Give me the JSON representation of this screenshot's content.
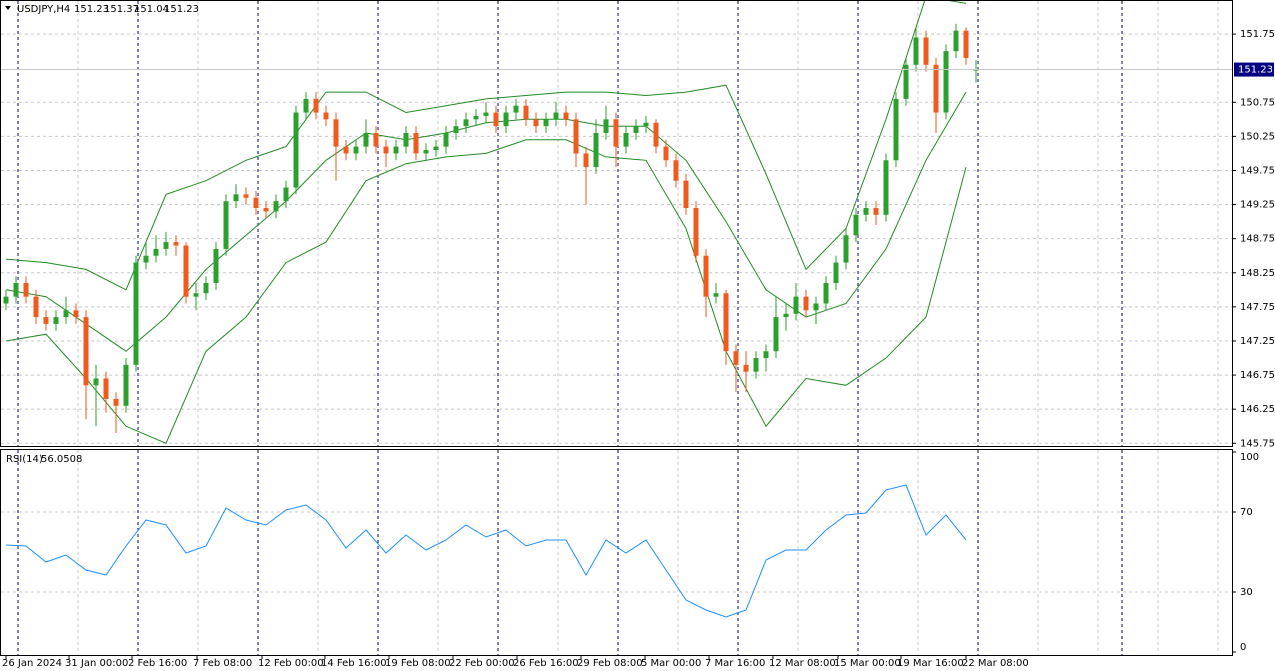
{
  "chart_data": [
    {
      "type": "candlestick",
      "title": "USDJPY,H4",
      "header_values": [
        151.23,
        151.37,
        151.04,
        151.23
      ],
      "up_color": "#2ca02c",
      "down_color": "#f05a1e",
      "grid": true,
      "ylim": [
        145.71,
        152.25
      ],
      "yticks": [
        145.75,
        146.25,
        146.75,
        147.25,
        147.75,
        148.25,
        148.75,
        149.25,
        149.75,
        150.25,
        150.75,
        151.75
      ],
      "last_price": 151.23,
      "xlim": [
        -0.6,
        122.6
      ],
      "xticks": [
        {
          "value": 0,
          "label": "26 Jan 2024"
        },
        {
          "value": 6.3,
          "label": "31 Jan 00:00"
        },
        {
          "value": 12.6,
          "label": "2 Feb 16:00"
        },
        {
          "value": 19.1,
          "label": "7 Feb 08:00"
        },
        {
          "value": 25.6,
          "label": "12 Feb 00:00"
        },
        {
          "value": 31.9,
          "label": "14 Feb 16:00"
        },
        {
          "value": 38.3,
          "label": "19 Feb 08:00"
        },
        {
          "value": 44.7,
          "label": "22 Feb 00:00"
        },
        {
          "value": 51.1,
          "label": "26 Feb 16:00"
        },
        {
          "value": 57.5,
          "label": "29 Feb 08:00"
        },
        {
          "value": 63.9,
          "label": "5 Mar 00:00"
        },
        {
          "value": 70.3,
          "label": "7 Mar 16:00"
        },
        {
          "value": 76.7,
          "label": "12 Mar 08:00"
        },
        {
          "value": 83.2,
          "label": "15 Mar 00:00"
        },
        {
          "value": 89.5,
          "label": "19 Mar 16:00"
        },
        {
          "value": 96,
          "label": "22 Mar 08:00"
        }
      ],
      "candles": [
        [
          147.8,
          148.0,
          147.7,
          147.9
        ],
        [
          147.9,
          148.2,
          147.8,
          148.1
        ],
        [
          148.1,
          148.2,
          147.8,
          147.9
        ],
        [
          147.9,
          148.0,
          147.5,
          147.6
        ],
        [
          147.6,
          147.7,
          147.4,
          147.5
        ],
        [
          147.5,
          147.7,
          147.4,
          147.6
        ],
        [
          147.6,
          147.9,
          147.5,
          147.7
        ],
        [
          147.7,
          147.8,
          147.5,
          147.6
        ],
        [
          147.6,
          147.7,
          146.1,
          146.6
        ],
        [
          146.6,
          146.9,
          146.0,
          146.7
        ],
        [
          146.7,
          146.8,
          146.2,
          146.4
        ],
        [
          146.4,
          146.5,
          145.9,
          146.3
        ],
        [
          146.3,
          147.0,
          146.2,
          146.9
        ],
        [
          146.9,
          148.5,
          146.8,
          148.4
        ],
        [
          148.4,
          148.7,
          148.3,
          148.5
        ],
        [
          148.5,
          148.8,
          148.4,
          148.6
        ],
        [
          148.6,
          148.85,
          148.5,
          148.7
        ],
        [
          148.7,
          148.8,
          148.5,
          148.65
        ],
        [
          148.65,
          148.7,
          147.8,
          147.9
        ],
        [
          147.9,
          148.1,
          147.7,
          147.95
        ],
        [
          147.95,
          148.2,
          147.85,
          148.1
        ],
        [
          148.1,
          148.7,
          148.0,
          148.6
        ],
        [
          148.6,
          149.4,
          148.5,
          149.3
        ],
        [
          149.3,
          149.55,
          149.2,
          149.4
        ],
        [
          149.4,
          149.5,
          149.25,
          149.35
        ],
        [
          149.35,
          149.45,
          149.1,
          149.2
        ],
        [
          149.2,
          149.3,
          149.05,
          149.15
        ],
        [
          149.15,
          149.4,
          149.05,
          149.3
        ],
        [
          149.3,
          149.6,
          149.2,
          149.5
        ],
        [
          149.5,
          150.7,
          149.4,
          150.6
        ],
        [
          150.6,
          150.9,
          150.5,
          150.8
        ],
        [
          150.8,
          150.9,
          150.5,
          150.6
        ],
        [
          150.6,
          150.7,
          150.4,
          150.5
        ],
        [
          150.5,
          150.6,
          149.6,
          150.1
        ],
        [
          150.1,
          150.2,
          149.9,
          150.0
        ],
        [
          150.0,
          150.2,
          149.9,
          150.1
        ],
        [
          150.1,
          150.5,
          150.0,
          150.3
        ],
        [
          150.3,
          150.4,
          150.0,
          150.1
        ],
        [
          150.1,
          150.2,
          149.8,
          150.0
        ],
        [
          150.0,
          150.2,
          149.9,
          150.1
        ],
        [
          150.1,
          150.4,
          150.0,
          150.3
        ],
        [
          150.3,
          150.4,
          149.9,
          150.0
        ],
        [
          150.0,
          150.15,
          149.9,
          150.05
        ],
        [
          150.05,
          150.2,
          149.95,
          150.1
        ],
        [
          150.1,
          150.4,
          150.0,
          150.3
        ],
        [
          150.3,
          150.5,
          150.2,
          150.4
        ],
        [
          150.4,
          150.6,
          150.3,
          150.5
        ],
        [
          150.5,
          150.65,
          150.4,
          150.55
        ],
        [
          150.55,
          150.75,
          150.45,
          150.6
        ],
        [
          150.6,
          150.7,
          150.3,
          150.4
        ],
        [
          150.4,
          150.7,
          150.3,
          150.6
        ],
        [
          150.6,
          150.8,
          150.5,
          150.7
        ],
        [
          150.7,
          150.8,
          150.4,
          150.5
        ],
        [
          150.5,
          150.6,
          150.3,
          150.4
        ],
        [
          150.4,
          150.6,
          150.3,
          150.5
        ],
        [
          150.5,
          150.75,
          150.4,
          150.6
        ],
        [
          150.6,
          150.7,
          150.4,
          150.5
        ],
        [
          150.5,
          150.6,
          149.8,
          150.0
        ],
        [
          150.0,
          150.1,
          149.25,
          149.8
        ],
        [
          149.8,
          150.5,
          149.7,
          150.3
        ],
        [
          150.3,
          150.7,
          150.2,
          150.5
        ],
        [
          150.5,
          150.6,
          149.8,
          150.1
        ],
        [
          150.1,
          150.4,
          150.0,
          150.3
        ],
        [
          150.3,
          150.5,
          150.2,
          150.4
        ],
        [
          150.4,
          150.55,
          150.3,
          150.45
        ],
        [
          150.45,
          150.5,
          150.0,
          150.1
        ],
        [
          150.1,
          150.2,
          149.8,
          149.9
        ],
        [
          149.9,
          150.0,
          149.5,
          149.6
        ],
        [
          149.6,
          149.7,
          149.1,
          149.2
        ],
        [
          149.2,
          149.3,
          148.4,
          148.5
        ],
        [
          148.5,
          148.6,
          147.6,
          147.9
        ],
        [
          147.9,
          148.1,
          147.8,
          147.95
        ],
        [
          147.95,
          148.0,
          146.9,
          147.1
        ],
        [
          147.1,
          147.2,
          146.5,
          146.9
        ],
        [
          146.9,
          147.1,
          146.5,
          146.8
        ],
        [
          146.8,
          147.1,
          146.7,
          147.0
        ],
        [
          147.0,
          147.2,
          146.8,
          147.1
        ],
        [
          147.1,
          147.9,
          147.0,
          147.6
        ],
        [
          147.6,
          147.8,
          147.4,
          147.65
        ],
        [
          147.65,
          148.1,
          147.55,
          147.9
        ],
        [
          147.9,
          148.0,
          147.6,
          147.7
        ],
        [
          147.7,
          147.9,
          147.5,
          147.8
        ],
        [
          147.8,
          148.2,
          147.7,
          148.1
        ],
        [
          148.1,
          148.5,
          148.0,
          148.4
        ],
        [
          148.4,
          148.9,
          148.3,
          148.8
        ],
        [
          148.8,
          149.2,
          148.7,
          149.1
        ],
        [
          149.1,
          149.3,
          149.0,
          149.2
        ],
        [
          149.2,
          149.3,
          148.95,
          149.1
        ],
        [
          149.1,
          150.0,
          149.0,
          149.9
        ],
        [
          149.9,
          150.9,
          149.8,
          150.8
        ],
        [
          150.8,
          151.4,
          150.7,
          151.3
        ],
        [
          151.3,
          151.85,
          151.2,
          151.7
        ],
        [
          151.7,
          151.8,
          151.2,
          151.3
        ],
        [
          151.3,
          151.4,
          150.3,
          150.6
        ],
        [
          150.6,
          151.6,
          150.5,
          151.5
        ],
        [
          151.5,
          151.9,
          151.4,
          151.8
        ],
        [
          151.8,
          151.85,
          151.3,
          151.4
        ],
        [
          151.23,
          151.37,
          151.04,
          151.23
        ]
      ],
      "bands": {
        "color": "#228b22",
        "x": [
          0,
          4,
          8,
          12,
          16,
          20,
          24,
          28,
          32,
          36,
          40,
          44,
          48,
          52,
          56,
          60,
          64,
          68,
          72,
          76,
          80,
          84,
          88,
          92,
          96
        ],
        "upper": [
          148.45,
          148.4,
          148.3,
          148.0,
          149.4,
          149.6,
          149.9,
          150.1,
          150.9,
          150.9,
          150.6,
          150.7,
          150.8,
          150.85,
          150.9,
          150.9,
          150.85,
          150.9,
          151.0,
          149.7,
          148.3,
          148.9,
          150.5,
          152.3,
          152.2
        ],
        "middle": [
          148.0,
          147.9,
          147.5,
          147.1,
          147.6,
          148.3,
          148.8,
          149.3,
          149.9,
          150.3,
          150.2,
          150.3,
          150.45,
          150.5,
          150.5,
          150.4,
          150.4,
          149.9,
          149.0,
          148.0,
          147.6,
          147.8,
          148.6,
          149.9,
          150.9
        ],
        "lower": [
          147.25,
          147.35,
          146.7,
          146.0,
          145.75,
          147.1,
          147.6,
          148.4,
          148.7,
          149.6,
          149.85,
          149.95,
          150.0,
          150.2,
          150.2,
          149.95,
          149.9,
          148.9,
          147.1,
          146.0,
          146.7,
          146.6,
          147.0,
          147.6,
          149.8
        ]
      }
    },
    {
      "type": "line",
      "title": "RSI(14)",
      "last_value": 56.0508,
      "color": "#1e90ff",
      "ylim": [
        0,
        100
      ],
      "yticks": [
        0,
        30,
        70,
        100
      ],
      "xlim": [
        -0.6,
        122.6
      ],
      "x": [
        0,
        2,
        4,
        6,
        8,
        10,
        12,
        14,
        16,
        18,
        20,
        22,
        24,
        26,
        28,
        30,
        32,
        34,
        36,
        38,
        40,
        42,
        44,
        46,
        48,
        50,
        52,
        54,
        56,
        58,
        60,
        62,
        64,
        66,
        68,
        70,
        72,
        74,
        76,
        78,
        80,
        82,
        84,
        86,
        88,
        90,
        92,
        94,
        96
      ],
      "values": [
        53.5,
        53,
        45,
        48.5,
        41,
        38.5,
        53,
        66,
        63.5,
        49.5,
        53,
        72,
        66,
        63.5,
        71,
        73.5,
        66,
        52,
        61,
        49.5,
        58.5,
        51,
        56,
        63.5,
        57.5,
        61,
        53,
        56,
        56,
        38.5,
        56,
        49.5,
        56,
        41,
        26,
        21,
        17.5,
        21,
        46,
        51,
        51,
        61,
        68.5,
        69.5,
        81,
        83.5,
        58.5,
        68.5,
        56.05
      ]
    }
  ]
}
